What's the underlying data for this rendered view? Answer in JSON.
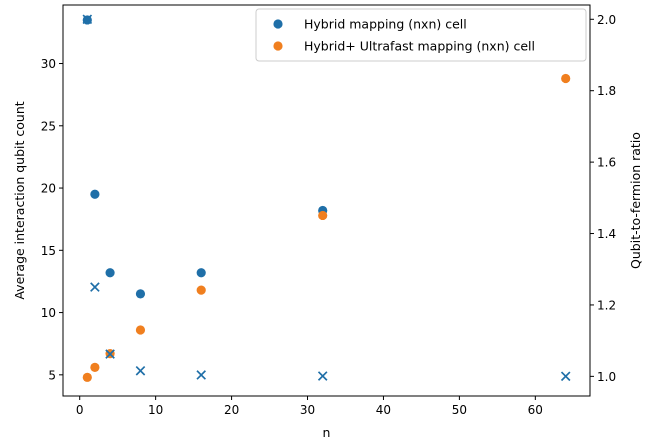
{
  "chart_data": {
    "type": "scatter",
    "xlabel": "n",
    "ylabel_left": "Average interaction qubit count",
    "ylabel_right": "Qubit-to-fermion ratio",
    "xlim": [
      -2.2,
      67.2
    ],
    "ylim_left": [
      3.3,
      34.7
    ],
    "ylim_right": [
      0.945,
      2.04
    ],
    "x_ticks": [
      "0",
      "10",
      "20",
      "30",
      "40",
      "50",
      "60"
    ],
    "y_left_ticks": [
      "5",
      "10",
      "15",
      "20",
      "25",
      "30"
    ],
    "y_right_ticks": [
      "1.0",
      "1.2",
      "1.4",
      "1.6",
      "1.8",
      "2.0"
    ],
    "legend": {
      "placement": "upper-right",
      "entries": [
        "Hybrid mapping (nxn) cell",
        "Hybrid+ Ultrafast mapping (nxn) cell"
      ]
    },
    "colors": {
      "hybrid": "#1f6fa8",
      "ultrafast": "#f07f1f"
    },
    "series": [
      {
        "name": "Hybrid mapping (nxn) cell",
        "axis": "left",
        "marker": "circle",
        "color_key": "hybrid",
        "points": [
          [
            1,
            33.5
          ],
          [
            2,
            19.5
          ],
          [
            4,
            13.2
          ],
          [
            8,
            11.5
          ],
          [
            16,
            13.2
          ],
          [
            32,
            18.2
          ]
        ]
      },
      {
        "name": "Hybrid+ Ultrafast mapping (nxn) cell",
        "axis": "left",
        "marker": "circle",
        "color_key": "ultrafast",
        "points": [
          [
            1,
            4.8
          ],
          [
            2,
            5.6
          ],
          [
            4,
            6.7
          ],
          [
            8,
            8.6
          ],
          [
            16,
            11.8
          ],
          [
            32,
            17.8
          ],
          [
            64,
            28.8
          ]
        ]
      },
      {
        "axis": "right",
        "marker": "cross",
        "color_key": "hybrid",
        "points": [
          [
            1,
            2.0
          ],
          [
            2,
            1.25
          ],
          [
            4,
            1.0625
          ],
          [
            8,
            1.015625
          ],
          [
            16,
            1.00390625
          ],
          [
            32,
            1.0009765625
          ],
          [
            64,
            1.000244140625
          ]
        ]
      }
    ]
  }
}
